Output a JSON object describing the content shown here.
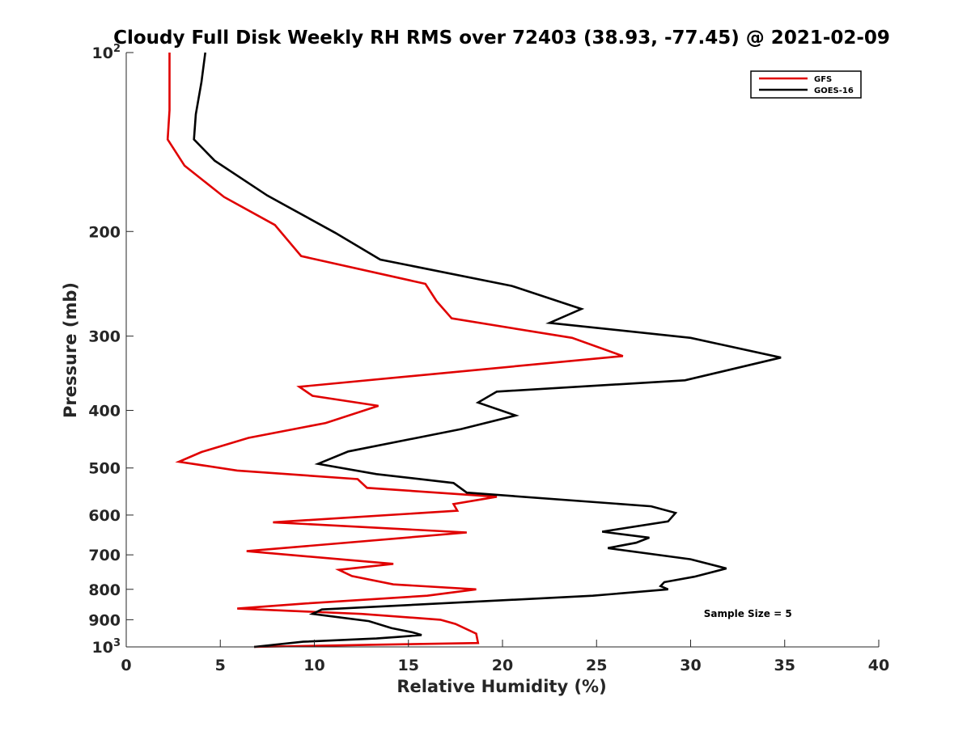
{
  "chart_data": {
    "type": "line",
    "title": "Cloudy Full Disk Weekly RH RMS over 72403 (38.93, -77.45) @ 2021-02-09",
    "xlabel": "Relative Humidity (%)",
    "ylabel": "Pressure (mb)",
    "xlim": [
      0,
      40
    ],
    "ylim": [
      100,
      1000
    ],
    "y_scale": "log",
    "y_reversed": true,
    "grid": false,
    "legend_position": "top-right",
    "x_ticks": [
      0,
      5,
      10,
      15,
      20,
      25,
      30,
      35,
      40
    ],
    "x_tick_labels": [
      "0",
      "5",
      "10",
      "15",
      "20",
      "25",
      "30",
      "35",
      "40"
    ],
    "y_ticks": [
      100,
      200,
      300,
      400,
      500,
      600,
      700,
      800,
      900,
      1000
    ],
    "y_tick_labels": [
      {
        "base": "10",
        "exp": "2"
      },
      {
        "base": "200",
        "exp": ""
      },
      {
        "base": "300",
        "exp": ""
      },
      {
        "base": "400",
        "exp": ""
      },
      {
        "base": "500",
        "exp": ""
      },
      {
        "base": "600",
        "exp": ""
      },
      {
        "base": "700",
        "exp": ""
      },
      {
        "base": "800",
        "exp": ""
      },
      {
        "base": "900",
        "exp": ""
      },
      {
        "base": "10",
        "exp": "3"
      }
    ],
    "series": [
      {
        "name": "GFS",
        "color": "#e00000",
        "points": [
          [
            2.3,
            100
          ],
          [
            2.3,
            125
          ],
          [
            2.2,
            140
          ],
          [
            3.1,
            155
          ],
          [
            5.2,
            175
          ],
          [
            7.9,
            195
          ],
          [
            9.3,
            220
          ],
          [
            15.9,
            245
          ],
          [
            16.5,
            262
          ],
          [
            17.3,
            280
          ],
          [
            23.7,
            302
          ],
          [
            26.4,
            324
          ],
          [
            9.2,
            365
          ],
          [
            9.9,
            378
          ],
          [
            13.4,
            393
          ],
          [
            10.6,
            420
          ],
          [
            6.5,
            445
          ],
          [
            4.0,
            470
          ],
          [
            2.8,
            488
          ],
          [
            5.9,
            505
          ],
          [
            12.3,
            522
          ],
          [
            12.8,
            540
          ],
          [
            19.7,
            559
          ],
          [
            17.4,
            575
          ],
          [
            17.6,
            590
          ],
          [
            7.8,
            617
          ],
          [
            18.1,
            642
          ],
          [
            6.4,
            690
          ],
          [
            14.2,
            725
          ],
          [
            11.3,
            742
          ],
          [
            12.0,
            760
          ],
          [
            14.2,
            785
          ],
          [
            18.6,
            800
          ],
          [
            16.0,
            820
          ],
          [
            9.6,
            845
          ],
          [
            5.9,
            862
          ],
          [
            12.5,
            880
          ],
          [
            16.7,
            900
          ],
          [
            17.5,
            915
          ],
          [
            18.6,
            950
          ],
          [
            18.7,
            985
          ],
          [
            12.9,
            992
          ],
          [
            6.8,
            1000
          ]
        ]
      },
      {
        "name": "GOES-16",
        "color": "#000000",
        "points": [
          [
            4.2,
            100
          ],
          [
            4.0,
            112
          ],
          [
            3.7,
            127
          ],
          [
            3.6,
            140
          ],
          [
            4.7,
            152
          ],
          [
            7.5,
            174
          ],
          [
            11.1,
            201
          ],
          [
            13.5,
            223
          ],
          [
            20.5,
            247
          ],
          [
            24.2,
            270
          ],
          [
            22.5,
            285
          ],
          [
            30.0,
            302
          ],
          [
            34.8,
            326
          ],
          [
            29.7,
            356
          ],
          [
            19.7,
            372
          ],
          [
            18.7,
            388
          ],
          [
            20.7,
            408
          ],
          [
            17.8,
            430
          ],
          [
            11.8,
            469
          ],
          [
            10.2,
            492
          ],
          [
            13.3,
            512
          ],
          [
            17.4,
            530
          ],
          [
            18.1,
            550
          ],
          [
            27.9,
            580
          ],
          [
            29.2,
            595
          ],
          [
            28.8,
            615
          ],
          [
            25.3,
            640
          ],
          [
            27.8,
            655
          ],
          [
            27.1,
            668
          ],
          [
            25.6,
            682
          ],
          [
            30.0,
            712
          ],
          [
            31.9,
            738
          ],
          [
            30.2,
            762
          ],
          [
            28.6,
            778
          ],
          [
            28.4,
            790
          ],
          [
            28.8,
            800
          ],
          [
            24.8,
            820
          ],
          [
            10.4,
            865
          ],
          [
            9.9,
            880
          ],
          [
            12.9,
            905
          ],
          [
            14.1,
            930
          ],
          [
            15.2,
            945
          ],
          [
            15.7,
            955
          ],
          [
            14.5,
            962
          ],
          [
            13.3,
            968
          ],
          [
            9.4,
            980
          ],
          [
            6.8,
            1000
          ]
        ]
      }
    ],
    "annotations": [
      {
        "text": "Sample Size = 5",
        "x": 30.7,
        "y": 880
      }
    ]
  }
}
